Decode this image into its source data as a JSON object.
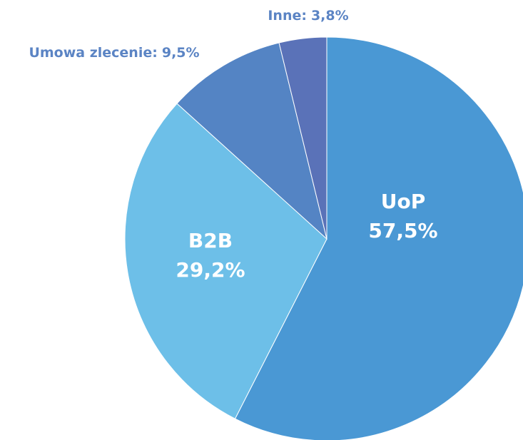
{
  "chart_data": {
    "type": "pie",
    "categories": [
      "UoP",
      "B2B",
      "Umowa zlecenie:",
      "Inne:"
    ],
    "values": [
      57.5,
      29.2,
      9.5,
      3.8
    ],
    "value_labels": [
      "57,5%",
      "29,2%",
      "9,5%",
      "3,8%"
    ],
    "colors": [
      "#4a98d4",
      "#6dbfe8",
      "#5484c4",
      "#5a72b8"
    ]
  }
}
